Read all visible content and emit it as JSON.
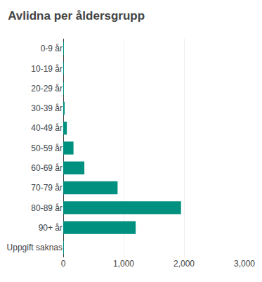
{
  "chart_data": {
    "type": "bar",
    "orientation": "horizontal",
    "title": "Avlidna per åldersgrupp",
    "categories": [
      "0-9 år",
      "10-19 år",
      "20-29 år",
      "30-39 år",
      "40-49 år",
      "50-59 år",
      "60-69 år",
      "70-79 år",
      "80-89 år",
      "90+ år",
      "Uppgift saknas"
    ],
    "values": [
      3,
      3,
      8,
      22,
      60,
      170,
      350,
      900,
      1950,
      1200,
      3
    ],
    "color": "#00907F",
    "xlim": [
      0,
      3000
    ],
    "xticks": [
      0,
      {
        "value": 1000,
        "label": "1,000"
      },
      {
        "value": 2000,
        "label": "2,000"
      },
      {
        "value": 3000,
        "label": "3,000"
      }
    ],
    "grid": true
  }
}
